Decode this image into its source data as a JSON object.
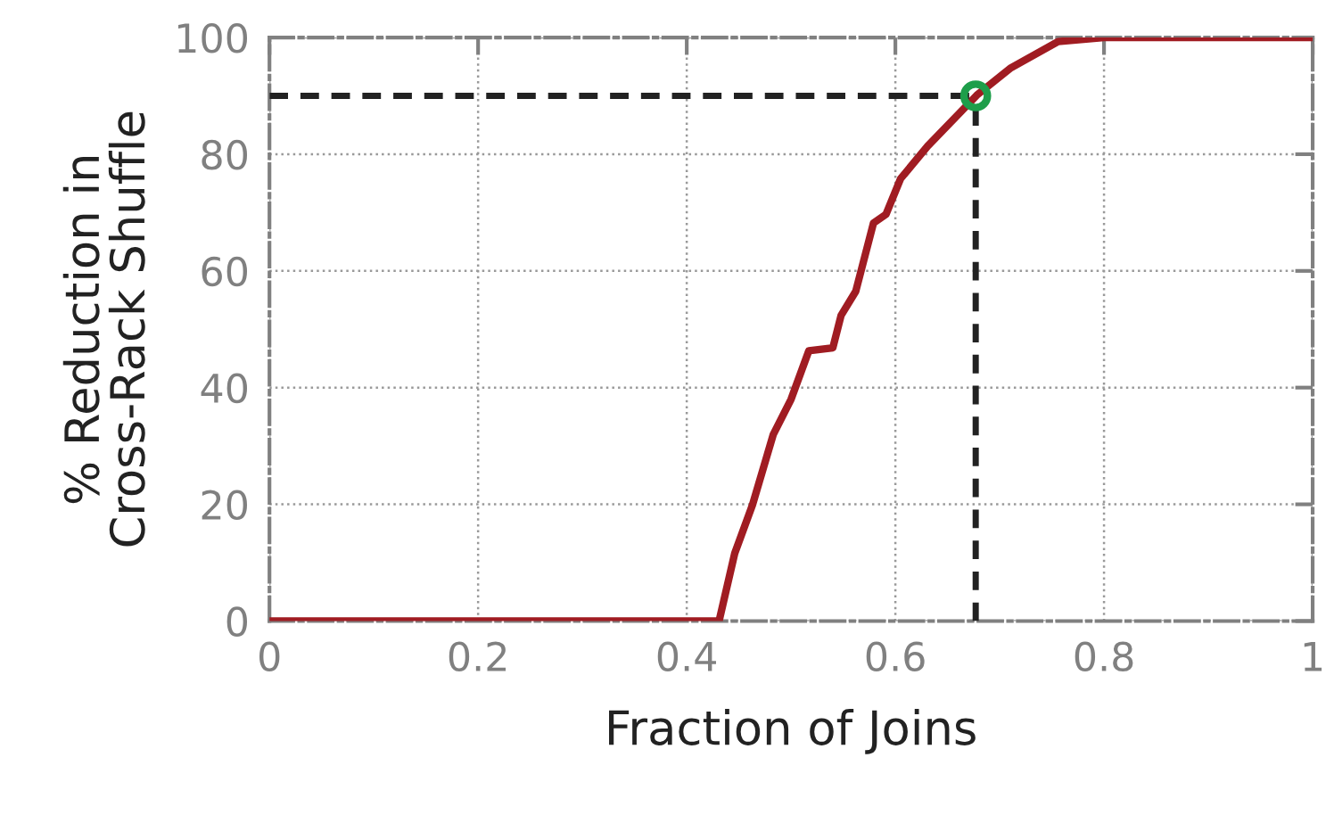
{
  "chart_data": {
    "type": "line",
    "xlabel": "Fraction of Joins",
    "ylabel": "% Reduction in\nCross-Rack Shuffle",
    "xlim": [
      0,
      1
    ],
    "ylim": [
      0,
      100
    ],
    "xticks": [
      0,
      0.2,
      0.4,
      0.6,
      0.8,
      1
    ],
    "yticks": [
      0,
      20,
      40,
      60,
      80,
      100
    ],
    "grid": true,
    "series": [
      {
        "color": "#a01c22",
        "line_style": "solid",
        "marker": "none",
        "x": [
          0,
          0.431,
          0.446,
          0.463,
          0.483,
          0.5,
          0.517,
          0.54,
          0.548,
          0.562,
          0.579,
          0.591,
          0.605,
          0.631,
          0.678,
          0.71,
          0.756,
          0.8,
          1
        ],
        "values": [
          0,
          0,
          11.6,
          19.9,
          32,
          38,
          46.3,
          46.8,
          52.4,
          56.5,
          68.2,
          69.7,
          75.8,
          81.4,
          90.1,
          94.7,
          99.3,
          100,
          100
        ]
      },
      {
        "color": "#222222",
        "line_style": "dashed",
        "marker": "none",
        "x": [
          0,
          0.677
        ],
        "values": [
          90,
          90
        ]
      },
      {
        "color": "#222222",
        "line_style": "dashed",
        "marker": "none",
        "x": [
          0.677,
          0.677
        ],
        "values": [
          0,
          90
        ]
      },
      {
        "type": "scatter",
        "color": "#1e9e4a",
        "marker": "circle",
        "x": [
          0.677
        ],
        "values": [
          90
        ]
      }
    ]
  }
}
